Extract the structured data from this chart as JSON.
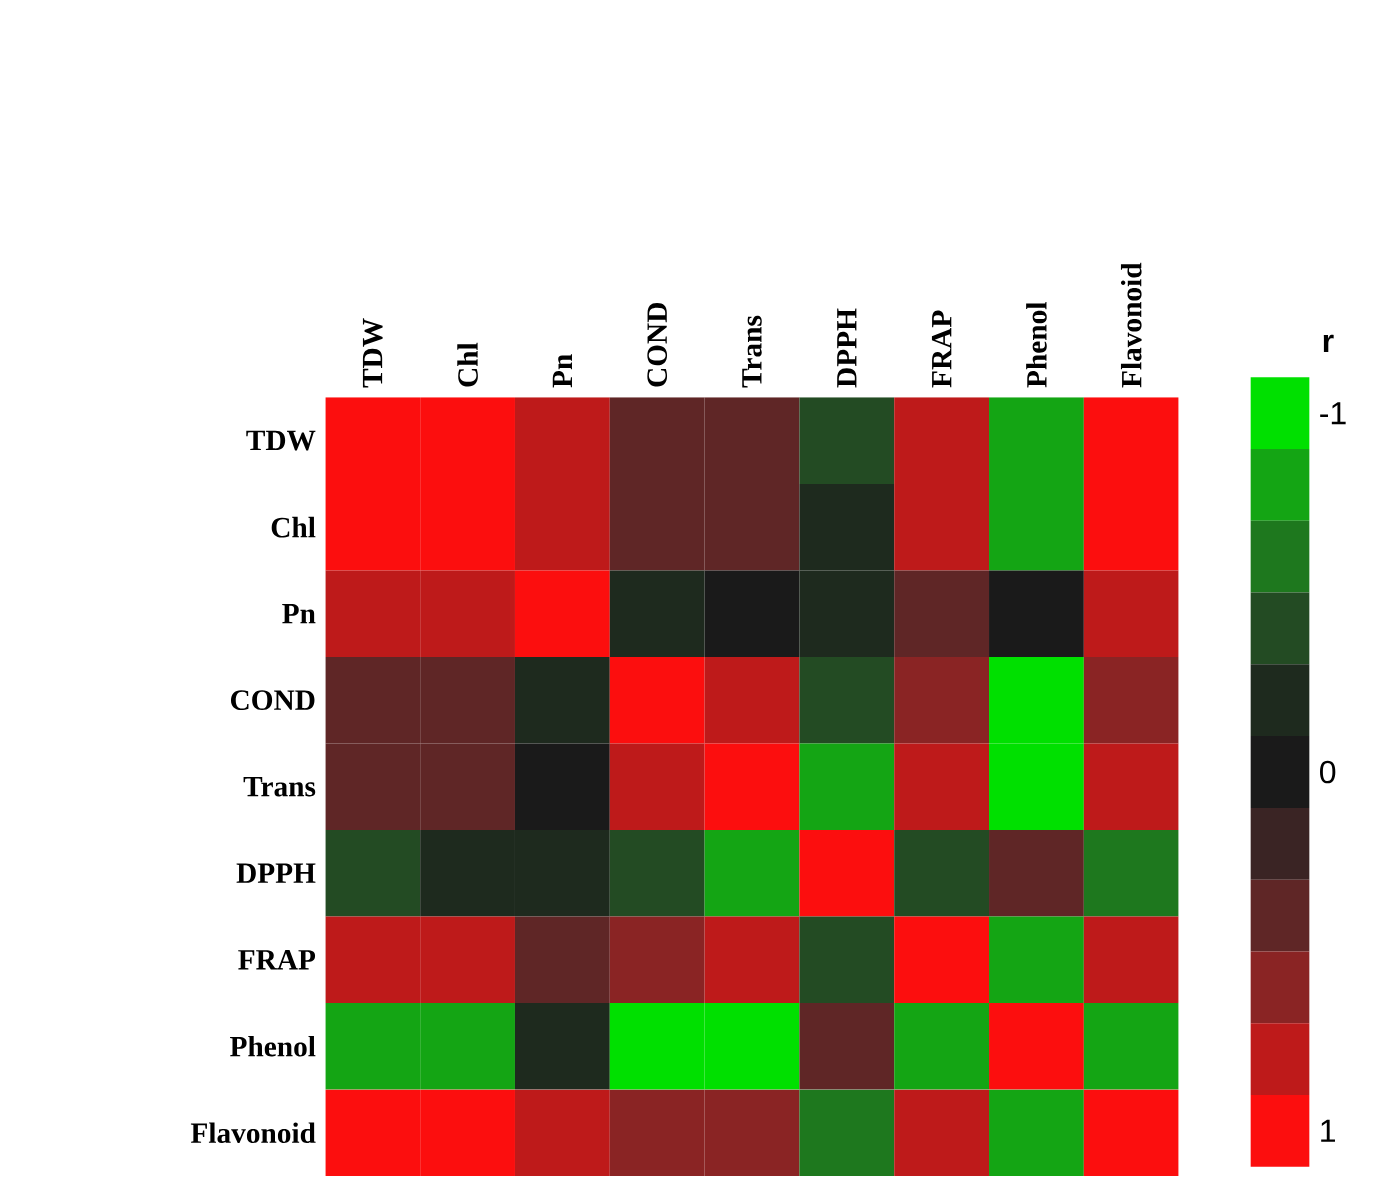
{
  "chart_data": {
    "type": "heatmap",
    "categories": [
      "TDW",
      "Chl",
      "Pn",
      "COND",
      "Trans",
      "DPPH",
      "FRAP",
      "Phenol",
      "Flavonoid"
    ],
    "y_categories": [
      "TDW",
      "Chl",
      "Pn",
      "COND",
      "Trans",
      "DPPH",
      "FRAP",
      "Phenol",
      "Flavonoid"
    ],
    "cells": [
      [
        1,
        1,
        0.8,
        0.4,
        0.4,
        -0.4,
        0.8,
        -0.8,
        1
      ],
      [
        1,
        1,
        0.8,
        0.4,
        0.4,
        -0.2,
        0.8,
        -0.8,
        1
      ],
      [
        0.8,
        0.8,
        1,
        -0.2,
        0,
        -0.2,
        0.4,
        0,
        0.8
      ],
      [
        0.4,
        0.4,
        -0.2,
        1,
        0.8,
        -0.4,
        0.6,
        -1,
        0.6
      ],
      [
        0.4,
        0.4,
        0,
        0.8,
        1,
        -0.8,
        0.8,
        -1,
        0.8
      ],
      [
        -0.4,
        -0.2,
        -0.2,
        -0.4,
        -0.8,
        1,
        -0.4,
        0.4,
        -0.6
      ],
      [
        0.8,
        0.8,
        0.4,
        0.6,
        0.8,
        -0.4,
        1,
        -0.8,
        0.8
      ],
      [
        -0.8,
        -0.8,
        -0.2,
        -1,
        -1,
        0.4,
        -0.8,
        1,
        -0.8
      ],
      [
        1,
        1,
        0.8,
        0.6,
        0.6,
        -0.6,
        0.8,
        -0.8,
        1
      ]
    ],
    "clabel": "r",
    "clim": [
      1.1,
      -1.1
    ],
    "cticks": [
      -1,
      0,
      1
    ]
  }
}
